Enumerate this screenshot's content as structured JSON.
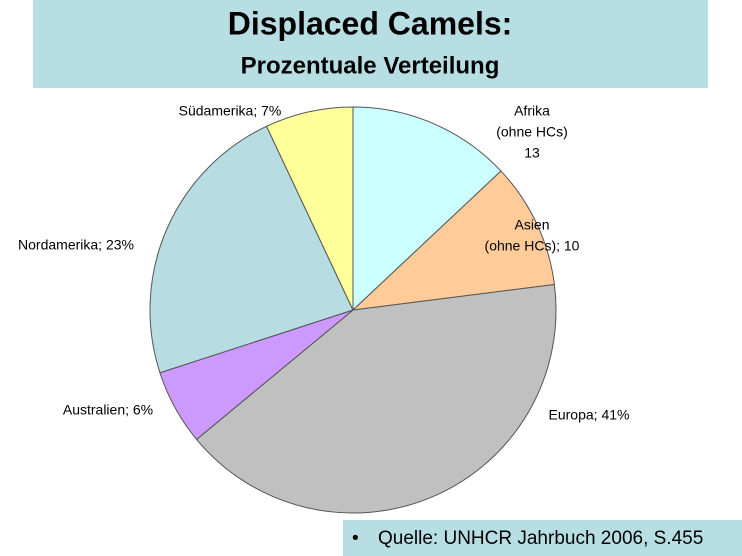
{
  "chart_data": {
    "type": "pie",
    "title": "Displaced Camels:",
    "subtitle": "Prozentuale Verteilung",
    "values": [
      13,
      10,
      41,
      6,
      23,
      7
    ],
    "value_labels": [
      [
        "Afrika",
        "(ohne HCs)",
        "13"
      ],
      [
        "Asien",
        "(ohne HCs); 10"
      ],
      [
        "Europa; 41%"
      ],
      [
        "Australien; 6%"
      ],
      [
        "Nordamerika; 23%"
      ],
      [
        "Südamerika; 7%"
      ]
    ],
    "colors": [
      "#ccffff",
      "#ffcc99",
      "#c0c0c0",
      "#cc99ff",
      "#b7dde2",
      "#ffff99"
    ],
    "source": "Quelle: UNHCR Jahrbuch 2006, S.455"
  }
}
